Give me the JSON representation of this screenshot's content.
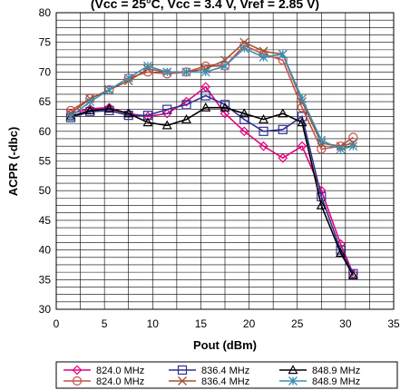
{
  "chart_data": {
    "type": "line",
    "title": "(Vcc = 25°C, Vcc = 3.4 V, Vref = 2.85 V)",
    "xlabel": "Pout (dBm)",
    "ylabel": "ACPR (-dbc)",
    "xlim": [
      0,
      35
    ],
    "ylim": [
      30,
      80
    ],
    "xticks": [
      "0",
      "5",
      "10",
      "15",
      "20",
      "25",
      "30",
      "35"
    ],
    "yticks": [
      "30",
      "35",
      "40",
      "45",
      "50",
      "55",
      "60",
      "65",
      "70",
      "75",
      "80"
    ],
    "grid": true,
    "legend_position": "bottom",
    "series": [
      {
        "name": "824.0 MHz",
        "color": "#e6007e",
        "marker": "diamond",
        "x": [
          1.5,
          3.5,
          5.5,
          7.5,
          9.5,
          11.5,
          13.5,
          15.5,
          17.5,
          19.5,
          21.5,
          23.5,
          25.5,
          27.5,
          29.5,
          30.8
        ],
        "y": [
          63.0,
          63.8,
          64.0,
          63.0,
          62.5,
          63.0,
          65.0,
          67.5,
          63.0,
          60.0,
          57.5,
          55.5,
          57.5,
          50.0,
          41.0,
          36.0
        ]
      },
      {
        "name": "836.4 MHz",
        "color": "#2e3192",
        "marker": "square",
        "x": [
          1.5,
          3.5,
          5.5,
          7.5,
          9.5,
          11.5,
          13.5,
          15.5,
          17.5,
          19.5,
          21.5,
          23.5,
          25.5,
          27.5,
          29.5,
          30.8
        ],
        "y": [
          62.3,
          63.3,
          63.5,
          62.7,
          62.7,
          63.7,
          64.5,
          66.0,
          64.5,
          62.0,
          60.0,
          60.3,
          62.5,
          49.0,
          40.0,
          36.0
        ]
      },
      {
        "name": "848.9 MHz",
        "color": "#000000",
        "marker": "triangle",
        "x": [
          1.5,
          3.5,
          5.5,
          7.5,
          9.5,
          11.5,
          13.5,
          15.5,
          17.5,
          19.5,
          21.5,
          23.5,
          25.5,
          27.5,
          29.5,
          30.8
        ],
        "y": [
          62.5,
          63.5,
          63.8,
          63.0,
          61.5,
          61.0,
          62.0,
          64.0,
          64.0,
          63.0,
          62.0,
          63.0,
          61.5,
          47.5,
          39.5,
          35.7
        ]
      },
      {
        "name": "824.0 MHz",
        "color": "#c8504b",
        "marker": "circle",
        "x": [
          1.5,
          3.5,
          5.5,
          7.5,
          9.5,
          11.5,
          13.5,
          15.5,
          17.5,
          19.5,
          21.5,
          23.5,
          25.5,
          27.5,
          29.5,
          30.8
        ],
        "y": [
          63.5,
          65.5,
          67.0,
          69.0,
          70.0,
          69.7,
          70.0,
          71.0,
          71.0,
          74.5,
          73.0,
          72.0,
          64.0,
          57.0,
          57.5,
          59.0
        ]
      },
      {
        "name": "836.4 MHz",
        "color": "#a0522d",
        "marker": "x",
        "x": [
          1.5,
          3.5,
          5.5,
          7.5,
          9.5,
          11.5,
          13.5,
          15.5,
          17.5,
          19.5,
          21.5,
          23.5,
          25.5,
          27.5,
          29.5,
          30.8
        ],
        "y": [
          63.0,
          65.5,
          67.0,
          68.5,
          70.5,
          70.0,
          70.0,
          70.5,
          72.0,
          75.0,
          73.5,
          73.0,
          65.0,
          58.0,
          57.5,
          58.0
        ]
      },
      {
        "name": "848.9 MHz",
        "color": "#3a8fb7",
        "marker": "asterisk",
        "x": [
          1.5,
          3.5,
          5.5,
          7.5,
          9.5,
          11.5,
          13.5,
          15.5,
          17.5,
          19.5,
          21.5,
          23.5,
          25.5,
          27.5,
          29.5,
          30.8
        ],
        "y": [
          62.5,
          65.0,
          67.0,
          69.0,
          71.0,
          70.0,
          70.0,
          70.0,
          71.0,
          74.0,
          72.5,
          73.0,
          65.5,
          58.5,
          57.0,
          57.5
        ]
      }
    ]
  }
}
